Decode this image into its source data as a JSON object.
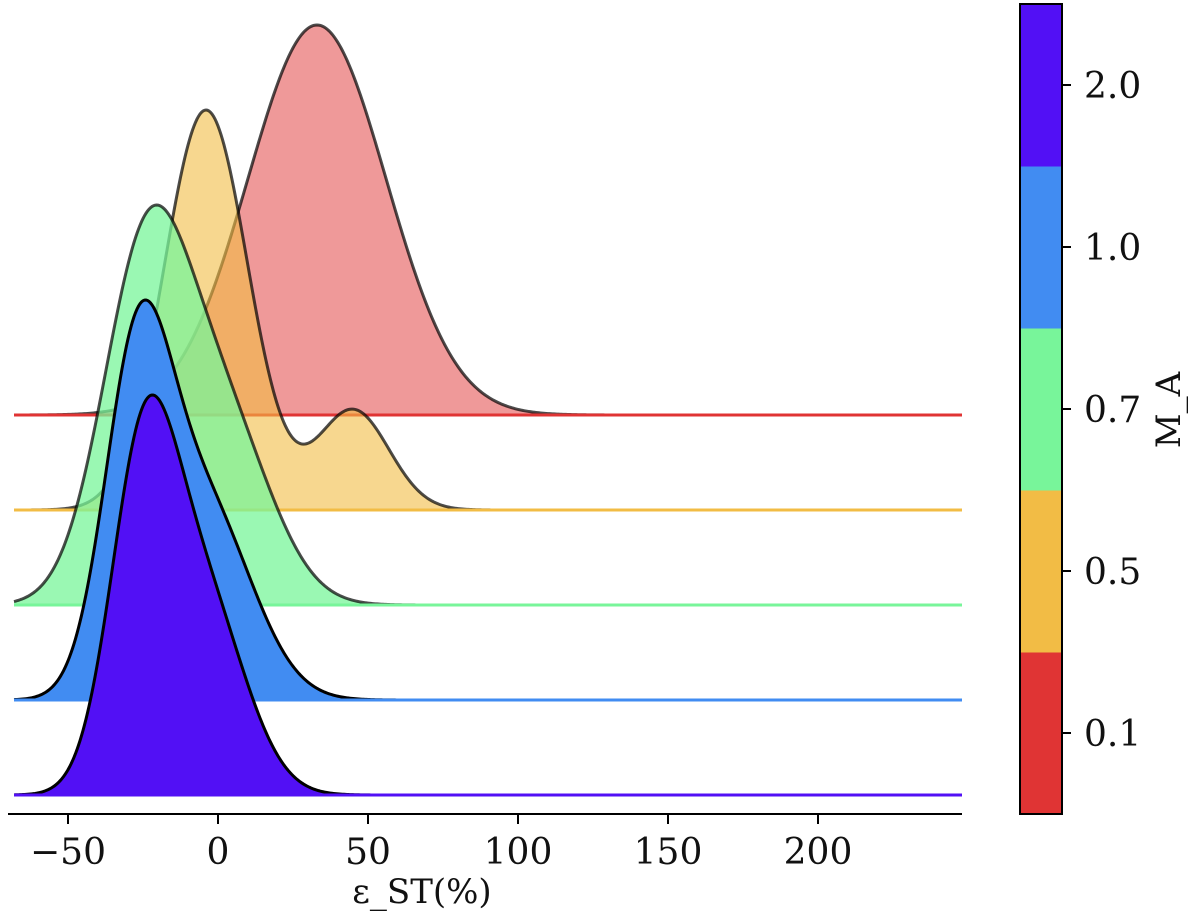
{
  "chart_data": {
    "type": "area",
    "subtype": "ridgeline-density",
    "xlabel": "ε_ST(%)",
    "xlim": [
      -70,
      248
    ],
    "x_ticks": [
      {
        "value": -50,
        "label": "−50"
      },
      {
        "value": 0,
        "label": "0"
      },
      {
        "value": 50,
        "label": "50"
      },
      {
        "value": 100,
        "label": "100"
      },
      {
        "value": 150,
        "label": "150"
      },
      {
        "value": 200,
        "label": "200"
      }
    ],
    "colorbar": {
      "label": "M_A",
      "ticks": [
        "0.1",
        "0.5",
        "0.7",
        "1.0",
        "2.0"
      ],
      "colors": [
        "#e03434",
        "#f2bc45",
        "#78f59a",
        "#418cf2",
        "#5210f5"
      ]
    },
    "series": [
      {
        "name": "0.1",
        "color": "#e03434",
        "opacity": 0.5,
        "peak_height": 3.9,
        "components": [
          {
            "mu": 33,
            "sigma": 23,
            "w": 1
          }
        ],
        "x_start": -68
      },
      {
        "name": "0.5",
        "color": "#f2bc45",
        "opacity": 0.6,
        "peak_height": 4.0,
        "components": [
          {
            "mu": -4,
            "sigma": 14,
            "w": 1
          },
          {
            "mu": 45,
            "sigma": 12,
            "w": 0.25
          }
        ],
        "x_start": -68
      },
      {
        "name": "0.7",
        "color": "#78f59a",
        "opacity": 0.75,
        "peak_height": 4.0,
        "components": [
          {
            "mu": -24,
            "sigma": 14.5,
            "w": 1
          },
          {
            "mu": 2,
            "sigma": 16,
            "w": 0.5
          }
        ],
        "x_start": -68
      },
      {
        "name": "1.0",
        "color": "#418cf2",
        "opacity": 1.0,
        "peak_height": 4.0,
        "components": [
          {
            "mu": -27,
            "sigma": 11,
            "w": 1
          },
          {
            "mu": -5,
            "sigma": 16,
            "w": 0.62
          }
        ],
        "x_start": -68
      },
      {
        "name": "2.0",
        "color": "#5210f5",
        "opacity": 1.0,
        "peak_height": 4.0,
        "components": [
          {
            "mu": -25,
            "sigma": 11,
            "w": 1
          },
          {
            "mu": -5,
            "sigma": 14,
            "w": 0.6
          }
        ],
        "x_start": -68
      }
    ]
  }
}
